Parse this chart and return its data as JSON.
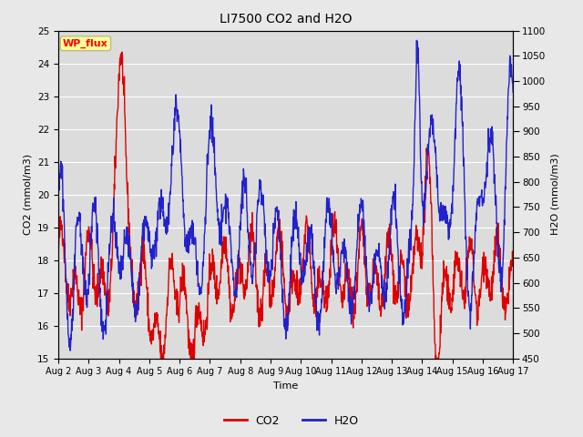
{
  "title": "LI7500 CO2 and H2O",
  "xlabel": "Time",
  "ylabel_left": "CO2 (mmol/m3)",
  "ylabel_right": "H2O (mmol/m3)",
  "annotation": "WP_flux",
  "co2_ylim": [
    15.0,
    25.0
  ],
  "h2o_ylim": [
    450,
    1100
  ],
  "co2_yticks": [
    15.0,
    16.0,
    17.0,
    18.0,
    19.0,
    20.0,
    21.0,
    22.0,
    23.0,
    24.0,
    25.0
  ],
  "h2o_yticks": [
    450,
    500,
    550,
    600,
    650,
    700,
    750,
    800,
    850,
    900,
    950,
    1000,
    1050,
    1100
  ],
  "x_tick_labels": [
    "Aug 2",
    "Aug 3",
    "Aug 4",
    "Aug 5",
    "Aug 6",
    "Aug 7",
    "Aug 8",
    "Aug 9",
    "Aug 10",
    "Aug 11",
    "Aug 12",
    "Aug 13",
    "Aug 14",
    "Aug 15",
    "Aug 16",
    "Aug 17"
  ],
  "co2_color": "#DD0000",
  "h2o_color": "#2222CC",
  "fig_bg_color": "#E8E8E8",
  "plot_bg_color": "#DCDCDC",
  "grid_color": "#FFFFFF",
  "annotation_bg": "#FFFF99",
  "annotation_border": "#BBBB88",
  "line_width": 1.0,
  "title_fontsize": 10,
  "label_fontsize": 8,
  "tick_fontsize": 7.5,
  "legend_fontsize": 9
}
